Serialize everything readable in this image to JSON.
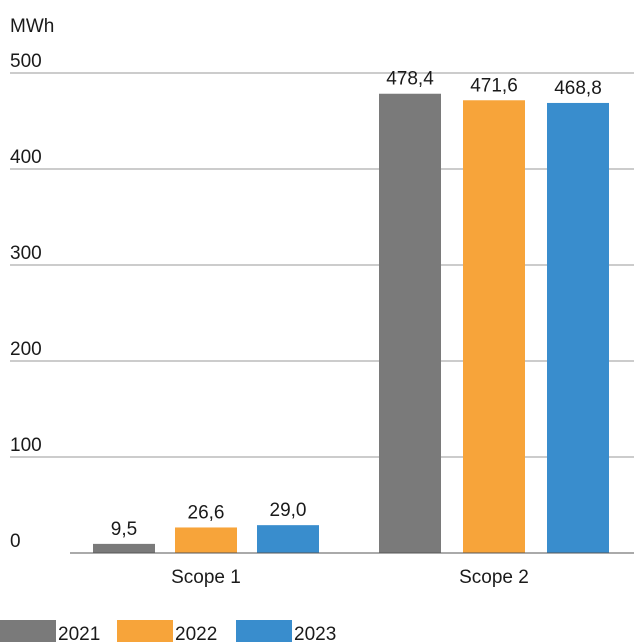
{
  "chart_data": {
    "type": "bar",
    "unit": "MWh",
    "categories": [
      "Scope 1",
      "Scope 2"
    ],
    "series": [
      {
        "name": "2021",
        "color": "#7a7a7a",
        "values": [
          9.5,
          478.4
        ],
        "labels": [
          "9,5",
          "478,4"
        ]
      },
      {
        "name": "2022",
        "color": "#f7a43a",
        "values": [
          26.6,
          471.6
        ],
        "labels": [
          "26,6",
          "471,6"
        ]
      },
      {
        "name": "2023",
        "color": "#398dcd",
        "values": [
          29.0,
          468.8
        ],
        "labels": [
          "29,0",
          "468,8"
        ]
      }
    ],
    "ylim": [
      0,
      500
    ],
    "yticks": [
      0,
      100,
      200,
      300,
      400,
      500
    ],
    "grid": true,
    "legend_position": "bottom-left"
  }
}
